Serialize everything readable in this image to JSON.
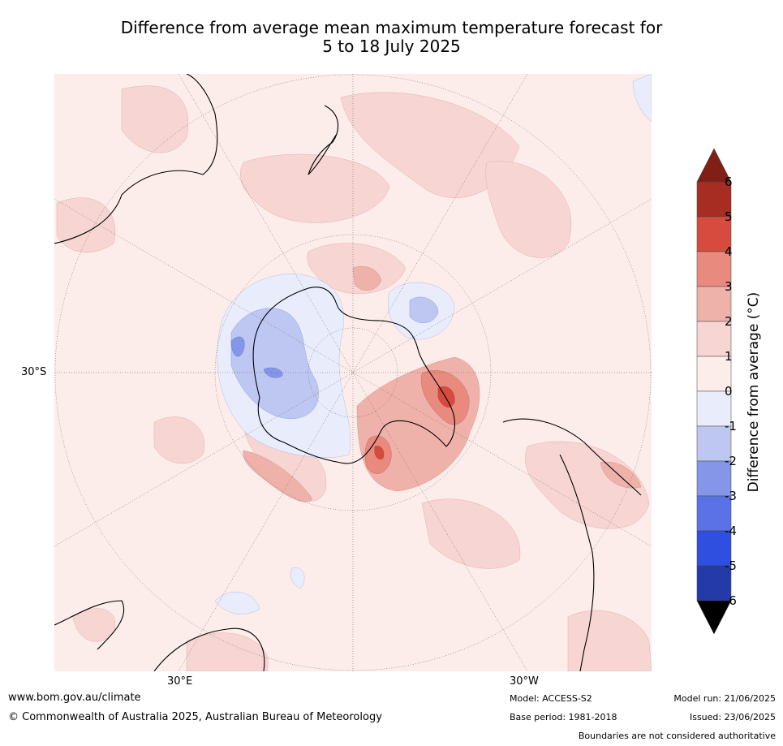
{
  "title": {
    "line1": "Difference from average mean maximum temperature forecast for",
    "line2": "5 to 18 July 2025"
  },
  "map": {
    "projection": "south-polar-stereographic",
    "lat_label": "30°S",
    "lon_labels": {
      "east": "30°E",
      "west": "30°W"
    },
    "background_color": "#fcecea",
    "regions": [
      {
        "name": "antarctica-west-negative",
        "level": -1
      },
      {
        "name": "antarctica-west-core",
        "level": -2
      },
      {
        "name": "ross-sea-negative",
        "level": -1
      },
      {
        "name": "weddell-sea-positive",
        "level": 2
      },
      {
        "name": "antarctic-peninsula-positive",
        "level": 3
      },
      {
        "name": "east-antarctica-coast-positive",
        "level": 3
      },
      {
        "name": "south-america-positive",
        "level": 1
      },
      {
        "name": "southern-ocean-positive",
        "level": 1
      }
    ]
  },
  "colorbar": {
    "title": "Difference from average (°C)",
    "ticks": [
      "6",
      "5",
      "4",
      "3",
      "2",
      "1",
      "0",
      "-1",
      "-2",
      "-3",
      "-4",
      "-5",
      "-6"
    ],
    "colors": {
      "above_6": "#7f1f16",
      "5_6": "#a72c22",
      "4_5": "#d64b3d",
      "3_4": "#e98a7f",
      "2_3": "#efb2aa",
      "1_2": "#f6d5d2",
      "0_1": "#fcecea",
      "-1_0": "#e8ecfb",
      "-2_-1": "#bec7f2",
      "-3_-2": "#8596e8",
      "-4_-3": "#5a72e6",
      "-5_-4": "#2f4fe0",
      "-6_-5": "#243aa8",
      "below_-6": "#1b2a7a"
    }
  },
  "footer": {
    "website": "www.bom.gov.au/climate",
    "copyright": "© Commonwealth of Australia 2025, Australian Bureau of Meteorology",
    "model": "Model: ACCESS-S2",
    "base_period": "Base period: 1981-2018",
    "model_run": "Model run: 21/06/2025",
    "issued": "Issued: 23/06/2025",
    "disclaimer": "Boundaries are not considered authoritative"
  }
}
